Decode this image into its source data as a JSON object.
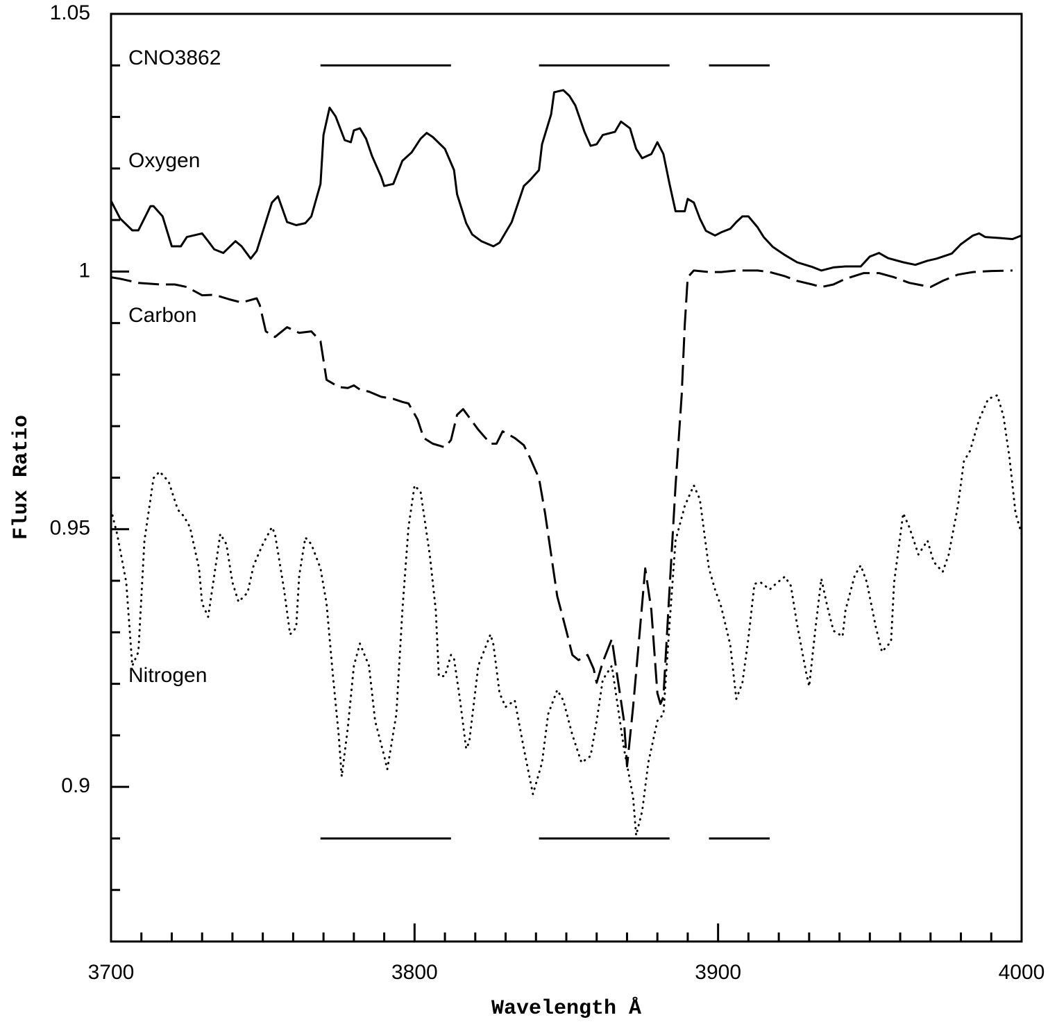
{
  "chart_data": {
    "type": "line",
    "xlabel": "Wavelength Å",
    "ylabel": "Flux Ratio",
    "xlim": [
      3700,
      4000
    ],
    "ylim": [
      0.87,
      1.05
    ],
    "xticks": [
      3700,
      3800,
      3900,
      4000
    ],
    "yticks": [
      0.9,
      0.95,
      1,
      1.05
    ],
    "xminorticks": [
      3710,
      3720,
      3730,
      3740,
      3750,
      3760,
      3770,
      3780,
      3790,
      3810,
      3820,
      3830,
      3840,
      3850,
      3860,
      3870,
      3880,
      3890,
      3910,
      3920,
      3930,
      3940,
      3950,
      3960,
      3970,
      3980,
      3990
    ],
    "yminorticks": [
      0.88,
      0.89,
      0.91,
      0.92,
      0.93,
      0.94,
      0.96,
      0.97,
      0.98,
      0.99,
      1.01,
      1.02,
      1.03,
      1.04
    ],
    "annotation": "CNO3862",
    "bands": [
      {
        "y": 1.04,
        "ranges": [
          [
            3769,
            3812
          ],
          [
            3841,
            3884
          ],
          [
            3897,
            3917
          ]
        ]
      },
      {
        "y": 0.89,
        "ranges": [
          [
            3769,
            3812
          ],
          [
            3841,
            3884
          ],
          [
            3897,
            3917
          ]
        ]
      }
    ],
    "series": [
      {
        "name": "Oxygen",
        "color": "#000000",
        "style": "solid",
        "x": [
          3700,
          3703,
          3707,
          3709,
          3713,
          3714,
          3717,
          3720,
          3723,
          3725,
          3730,
          3732,
          3734,
          3737,
          3741,
          3743,
          3746,
          3748,
          3753,
          3755,
          3758,
          3761,
          3764,
          3766,
          3769,
          3770,
          3772,
          3774,
          3777,
          3779,
          3780,
          3782,
          3784,
          3786,
          3789,
          3790,
          3793,
          3796,
          3799,
          3802,
          3804,
          3806,
          3810,
          3813,
          3814,
          3817,
          3819,
          3822,
          3826,
          3828,
          3832,
          3836,
          3838,
          3841,
          3842,
          3845,
          3846,
          3849,
          3851,
          3853,
          3856,
          3858,
          3860,
          3862,
          3866,
          3868,
          3871,
          3873,
          3875,
          3878,
          3880,
          3882,
          3884,
          3886,
          3889,
          3890,
          3892,
          3894,
          3896,
          3899,
          3901,
          3904,
          3906,
          3908,
          3910,
          3913,
          3915,
          3918,
          3922,
          3926,
          3931,
          3934,
          3938,
          3942,
          3947,
          3950,
          3953,
          3956,
          3961,
          3965,
          3969,
          3972,
          3977,
          3980,
          3984,
          3986,
          3988,
          3993,
          3997,
          4000
        ],
        "values": [
          1.0137,
          1.0103,
          1.008,
          1.008,
          1.0127,
          1.0127,
          1.0107,
          1.0049,
          1.0049,
          1.0067,
          1.0074,
          1.0059,
          1.0043,
          1.0036,
          1.0059,
          1.0049,
          1.0025,
          1.004,
          1.0134,
          1.0146,
          1.0096,
          1.009,
          1.0094,
          1.0107,
          1.017,
          1.0265,
          1.0318,
          1.0301,
          1.0255,
          1.0251,
          1.0274,
          1.0278,
          1.0258,
          1.0224,
          1.0184,
          1.0166,
          1.017,
          1.0215,
          1.0231,
          1.0258,
          1.0269,
          1.0261,
          1.0238,
          1.0197,
          1.015,
          1.0094,
          1.0072,
          1.0059,
          1.0049,
          1.0056,
          1.0096,
          1.0166,
          1.0177,
          1.0197,
          1.0247,
          1.0305,
          1.0348,
          1.0352,
          1.0341,
          1.0322,
          1.0271,
          1.0244,
          1.0247,
          1.0265,
          1.0271,
          1.0291,
          1.0278,
          1.0238,
          1.022,
          1.0228,
          1.0251,
          1.0228,
          1.017,
          1.0117,
          1.0117,
          1.0141,
          1.0134,
          1.0103,
          1.0079,
          1.007,
          1.0076,
          1.0083,
          1.0096,
          1.0107,
          1.0107,
          1.0086,
          1.0067,
          1.0048,
          1.0032,
          1.0018,
          1.0009,
          1.0002,
          1.0008,
          1.001,
          1.001,
          1.0029,
          1.0036,
          1.0026,
          1.0018,
          1.0013,
          1.0021,
          1.0025,
          1.0035,
          1.0053,
          1.007,
          1.0074,
          1.0067,
          1.0065,
          1.0063,
          1.007
        ]
      },
      {
        "name": "Carbon",
        "color": "#000000",
        "style": "dashed",
        "x": [
          3700,
          3703,
          3709,
          3716,
          3721,
          3725,
          3730,
          3734,
          3739,
          3743,
          3748,
          3749,
          3751,
          3754,
          3758,
          3762,
          3766,
          3769,
          3771,
          3773,
          3775,
          3778,
          3780,
          3782,
          3785,
          3789,
          3793,
          3796,
          3798,
          3801,
          3803,
          3806,
          3810,
          3812,
          3814,
          3816,
          3818,
          3821,
          3825,
          3827,
          3829,
          3833,
          3836,
          3838,
          3841,
          3843,
          3845,
          3847,
          3850,
          3852,
          3854,
          3857,
          3859,
          3860,
          3862,
          3865,
          3866,
          3869,
          3870,
          3872,
          3874,
          3876,
          3878,
          3880,
          3881,
          3882,
          3884,
          3886,
          3888,
          3889,
          3890,
          3892,
          3897,
          3901,
          3906,
          3913,
          3917,
          3922,
          3926,
          3931,
          3934,
          3938,
          3942,
          3948,
          3953,
          3958,
          3963,
          3970,
          3974,
          3979,
          3984,
          3990,
          3997
        ],
        "values": [
          0.9989,
          0.9986,
          0.9978,
          0.9975,
          0.9975,
          0.997,
          0.9954,
          0.9955,
          0.9946,
          0.994,
          0.9948,
          0.9935,
          0.9884,
          0.9873,
          0.9892,
          0.9881,
          0.9884,
          0.9865,
          0.979,
          0.9783,
          0.9776,
          0.9774,
          0.9779,
          0.9771,
          0.9767,
          0.9757,
          0.9753,
          0.9747,
          0.9744,
          0.9713,
          0.9677,
          0.9666,
          0.9659,
          0.9673,
          0.9722,
          0.9733,
          0.9717,
          0.9693,
          0.9666,
          0.9666,
          0.969,
          0.9677,
          0.9663,
          0.9639,
          0.9599,
          0.9531,
          0.9451,
          0.937,
          0.9303,
          0.9256,
          0.9246,
          0.9256,
          0.9229,
          0.9202,
          0.9242,
          0.9287,
          0.9246,
          0.9128,
          0.904,
          0.9155,
          0.9289,
          0.9424,
          0.9343,
          0.9182,
          0.9161,
          0.9175,
          0.9383,
          0.9585,
          0.976,
          0.9895,
          0.9989,
          1.0002,
          0.9999,
          0.9999,
          1.0002,
          1.0002,
          0.9999,
          0.9991,
          0.9982,
          0.9975,
          0.997,
          0.9975,
          0.9986,
          0.9997,
          0.9997,
          0.9989,
          0.9978,
          0.997,
          0.9982,
          0.9994,
          0.9999,
          1.0001,
          1.0002
        ]
      },
      {
        "name": "Nitrogen",
        "color": "#000000",
        "style": "dotted",
        "x": [
          3700,
          3702,
          3705,
          3707,
          3709,
          3711,
          3714,
          3716,
          3719,
          3722,
          3724,
          3726,
          3729,
          3730,
          3732,
          3734,
          3736,
          3738,
          3740,
          3742,
          3745,
          3747,
          3750,
          3753,
          3754,
          3757,
          3759,
          3761,
          3762,
          3764,
          3766,
          3769,
          3771,
          3773,
          3775,
          3776,
          3778,
          3780,
          3782,
          3785,
          3787,
          3790,
          3791,
          3794,
          3796,
          3798,
          3800,
          3802,
          3805,
          3807,
          3808,
          3810,
          3812,
          3813,
          3815,
          3817,
          3818,
          3821,
          3825,
          3826,
          3828,
          3830,
          3833,
          3836,
          3839,
          3842,
          3844,
          3847,
          3849,
          3852,
          3855,
          3858,
          3860,
          3862,
          3865,
          3867,
          3869,
          3872,
          3873,
          3875,
          3877,
          3880,
          3882,
          3884,
          3886,
          3889,
          3892,
          3894,
          3897,
          3899,
          3901,
          3904,
          3906,
          3908,
          3910,
          3912,
          3914,
          3917,
          3919,
          3922,
          3924,
          3926,
          3929,
          3930,
          3932,
          3934,
          3936,
          3938,
          3941,
          3942,
          3945,
          3947,
          3949,
          3952,
          3954,
          3957,
          3958,
          3961,
          3963,
          3966,
          3969,
          3971,
          3974,
          3976,
          3979,
          3981,
          3983,
          3986,
          3989,
          3992,
          3994,
          3996,
          3998,
          4000
        ],
        "values": [
          0.9538,
          0.9491,
          0.9397,
          0.9235,
          0.9262,
          0.9478,
          0.9599,
          0.9612,
          0.9592,
          0.9538,
          0.9525,
          0.9504,
          0.9424,
          0.9356,
          0.933,
          0.941,
          0.9491,
          0.9471,
          0.9397,
          0.9359,
          0.9377,
          0.943,
          0.9471,
          0.9504,
          0.9491,
          0.9383,
          0.9296,
          0.9309,
          0.941,
          0.9484,
          0.9471,
          0.9424,
          0.9356,
          0.9222,
          0.9101,
          0.902,
          0.9114,
          0.9235,
          0.9278,
          0.9235,
          0.9128,
          0.906,
          0.9034,
          0.9141,
          0.9343,
          0.9504,
          0.9585,
          0.9572,
          0.9451,
          0.9343,
          0.9215,
          0.9215,
          0.9256,
          0.9249,
          0.9168,
          0.9074,
          0.9087,
          0.9235,
          0.9296,
          0.9276,
          0.9182,
          0.9155,
          0.9168,
          0.9074,
          0.8986,
          0.9047,
          0.9141,
          0.9188,
          0.9168,
          0.9101,
          0.9047,
          0.906,
          0.9128,
          0.9208,
          0.9235,
          0.9155,
          0.9074,
          0.898,
          0.8906,
          0.8953,
          0.9047,
          0.9128,
          0.9141,
          0.9316,
          0.9478,
          0.9545,
          0.9585,
          0.9558,
          0.9424,
          0.9383,
          0.935,
          0.9276,
          0.9171,
          0.9202,
          0.9289,
          0.9394,
          0.9397,
          0.9383,
          0.9394,
          0.9408,
          0.939,
          0.9316,
          0.9222,
          0.9195,
          0.9303,
          0.9404,
          0.935,
          0.9303,
          0.9292,
          0.9343,
          0.941,
          0.943,
          0.9397,
          0.9309,
          0.9262,
          0.9282,
          0.9397,
          0.9531,
          0.9504,
          0.9451,
          0.9478,
          0.9437,
          0.9417,
          0.9451,
          0.9545,
          0.9632,
          0.9652,
          0.9713,
          0.9753,
          0.976,
          0.972,
          0.9639,
          0.9531,
          0.9491
        ]
      }
    ]
  }
}
